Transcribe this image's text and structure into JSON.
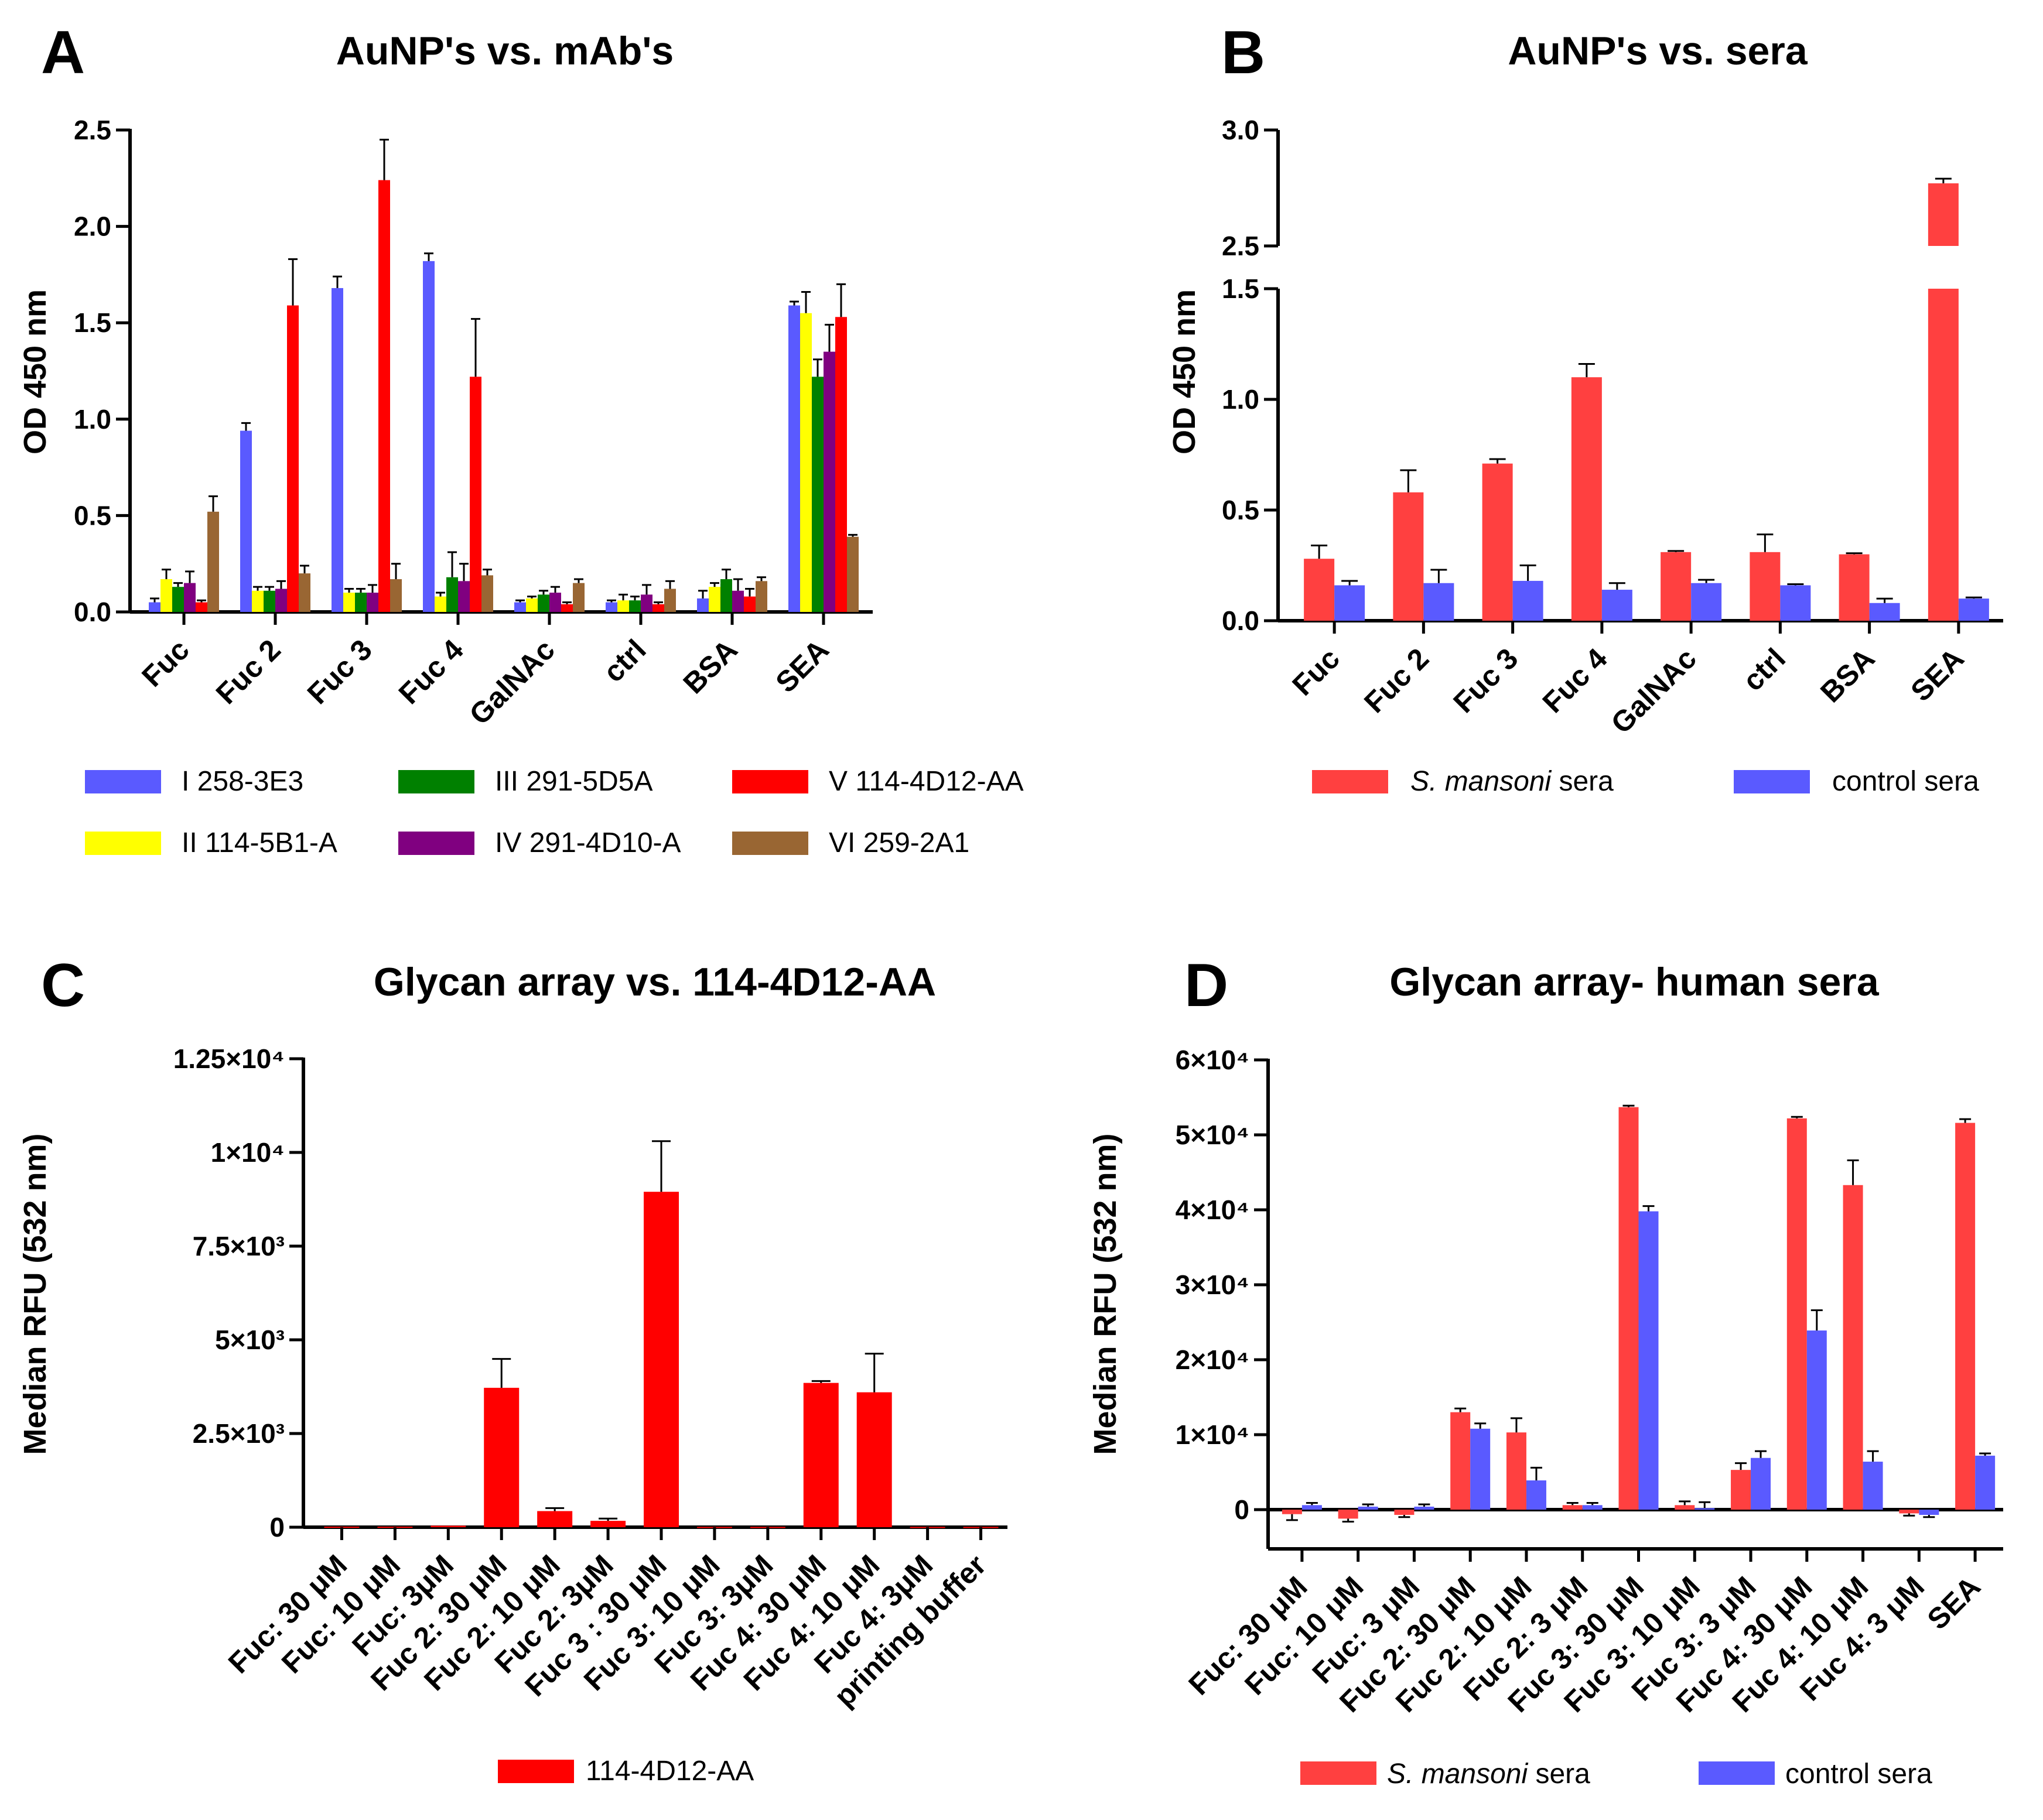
{
  "colors": {
    "mab_I": "#5a5aff",
    "mab_II": "#ffff00",
    "mab_III": "#008000",
    "mab_IV": "#800080",
    "mab_V": "#ff0000",
    "mab_VI": "#996633",
    "sm_sera": "#ff4040",
    "ctrl_sera": "#5a5aff",
    "bar_c": "#ff0000"
  },
  "chart_data": [
    {
      "panel": "A",
      "type": "bar",
      "title": "AuNP's vs. mAb's",
      "ylabel": "OD 450 nm",
      "xlabel": "",
      "ylim": [
        0,
        2.5
      ],
      "yticks": [
        "0.0",
        "0.5",
        "1.0",
        "1.5",
        "2.0",
        "2.5"
      ],
      "categories": [
        "Fuc",
        "Fuc 2",
        "Fuc 3",
        "Fuc 4",
        "GalNAc",
        "ctrl",
        "BSA",
        "SEA"
      ],
      "series": [
        {
          "name": "I 258-3E3",
          "values": [
            0.05,
            0.94,
            1.68,
            1.82,
            0.05,
            0.05,
            0.07,
            1.59
          ],
          "errors": [
            0.02,
            0.04,
            0.06,
            0.04,
            0.01,
            0.01,
            0.04,
            0.02
          ]
        },
        {
          "name": "II 114-5B1-A",
          "values": [
            0.17,
            0.11,
            0.1,
            0.08,
            0.07,
            0.06,
            0.13,
            1.55
          ],
          "errors": [
            0.05,
            0.02,
            0.02,
            0.02,
            0.01,
            0.03,
            0.02,
            0.11
          ]
        },
        {
          "name": "III 291-5D5A",
          "values": [
            0.13,
            0.11,
            0.1,
            0.18,
            0.09,
            0.06,
            0.17,
            1.22
          ],
          "errors": [
            0.02,
            0.02,
            0.02,
            0.13,
            0.02,
            0.02,
            0.05,
            0.09
          ]
        },
        {
          "name": "IV 291-4D10-A",
          "values": [
            0.15,
            0.12,
            0.1,
            0.16,
            0.1,
            0.09,
            0.11,
            1.35
          ],
          "errors": [
            0.06,
            0.04,
            0.04,
            0.09,
            0.03,
            0.05,
            0.06,
            0.14
          ]
        },
        {
          "name": "V 114-4D12-AA",
          "values": [
            0.05,
            1.59,
            2.24,
            1.22,
            0.04,
            0.04,
            0.08,
            1.53
          ],
          "errors": [
            0.01,
            0.24,
            0.21,
            0.3,
            0.01,
            0.01,
            0.04,
            0.17
          ]
        },
        {
          "name": "VI 259-2A1",
          "values": [
            0.52,
            0.2,
            0.17,
            0.19,
            0.15,
            0.12,
            0.16,
            0.39
          ],
          "errors": [
            0.08,
            0.04,
            0.08,
            0.03,
            0.02,
            0.04,
            0.02,
            0.01
          ]
        }
      ],
      "legend": "bottom"
    },
    {
      "panel": "B",
      "type": "bar",
      "title": "AuNP's vs. sera",
      "ylabel": "OD 450 nm",
      "xlabel": "",
      "ylim": [
        0,
        3.0
      ],
      "axis_break": [
        1.5,
        2.5
      ],
      "yticks": [
        "0.0",
        "0.5",
        "1.0",
        "1.5",
        "2.5",
        "3.0"
      ],
      "categories": [
        "Fuc",
        "Fuc 2",
        "Fuc 3",
        "Fuc 4",
        "GalNAc",
        "ctrl",
        "BSA",
        "SEA"
      ],
      "series": [
        {
          "name": "S. mansoni sera",
          "values": [
            0.28,
            0.58,
            0.71,
            1.1,
            0.31,
            0.31,
            0.3,
            2.77
          ],
          "errors": [
            0.06,
            0.1,
            0.02,
            0.06,
            0.005,
            0.08,
            0.005,
            0.02
          ]
        },
        {
          "name": "control sera",
          "values": [
            0.16,
            0.17,
            0.18,
            0.14,
            0.17,
            0.16,
            0.08,
            0.1
          ],
          "errors": [
            0.02,
            0.06,
            0.07,
            0.03,
            0.015,
            0.005,
            0.02,
            0.005
          ]
        }
      ],
      "legend_items": [
        {
          "prefix": "",
          "italic": "S. mansoni",
          "suffix": " sera"
        },
        {
          "prefix": "control sera",
          "italic": "",
          "suffix": ""
        }
      ],
      "legend": "bottom"
    },
    {
      "panel": "C",
      "type": "bar",
      "title": "Glycan array vs. 114-4D12-AA",
      "ylabel": "Median RFU (532 nm)",
      "xlabel": "",
      "ylim": [
        0,
        12500
      ],
      "yticks": [
        "0",
        "2.5×10³",
        "5×10³",
        "7.5×10³",
        "1×10⁴",
        "1.25×10⁴"
      ],
      "categories": [
        "Fuc: 30 μM",
        "Fuc: 10 μM",
        "Fuc: 3μM",
        "Fuc 2: 30 μM",
        "Fuc 2: 10 μM",
        "Fuc 2: 3μM",
        "Fuc 3 : 30 μM",
        "Fuc 3: 10 μM",
        "Fuc 3: 3μM",
        "Fuc 4: 30 μM",
        "Fuc 4: 10 μM",
        "Fuc 4: 3μM",
        "printing buffer"
      ],
      "series": [
        {
          "name": "114-4D12-AA",
          "values": [
            15,
            15,
            40,
            3720,
            430,
            170,
            8950,
            10,
            10,
            3850,
            3600,
            10,
            10
          ],
          "errors": [
            0,
            0,
            0,
            770,
            80,
            60,
            1350,
            0,
            0,
            50,
            1030,
            0,
            0
          ]
        }
      ],
      "legend": "bottom"
    },
    {
      "panel": "D",
      "type": "bar",
      "title": "Glycan array- human sera",
      "ylabel": "Median RFU (532 nm)",
      "xlabel": "",
      "ylim": [
        -5000,
        60000
      ],
      "yticks": [
        "0",
        "1×10⁴",
        "2×10⁴",
        "3×10⁴",
        "4×10⁴",
        "5×10⁴",
        "6×10⁴"
      ],
      "categories": [
        "Fuc: 30 μM",
        "Fuc: 10 μM",
        "Fuc: 3 μM",
        "Fuc 2: 30 μM",
        "Fuc 2: 10 μM",
        "Fuc 2: 3 μM",
        "Fuc 3: 30 μM",
        "Fuc 3: 10 μM",
        "Fuc 3: 3 μM",
        "Fuc 4: 30 μM",
        "Fuc 4: 10 μM",
        "Fuc 4: 3 μM",
        "SEA"
      ],
      "series": [
        {
          "name": "S. mansoni sera",
          "values": [
            -600,
            -1200,
            -700,
            13000,
            10300,
            600,
            53700,
            600,
            5300,
            52200,
            43300,
            -500,
            51600
          ],
          "errors": [
            800,
            400,
            300,
            500,
            1900,
            300,
            200,
            500,
            900,
            200,
            3300,
            300,
            500
          ]
        },
        {
          "name": "control sera",
          "values": [
            600,
            400,
            400,
            10800,
            3900,
            600,
            39800,
            200,
            6900,
            23900,
            6400,
            -700,
            7200
          ],
          "errors": [
            300,
            300,
            300,
            700,
            1700,
            300,
            700,
            800,
            900,
            2700,
            1400,
            300,
            300
          ]
        }
      ],
      "legend_items": [
        {
          "prefix": "",
          "italic": "S. mansoni",
          "suffix": " sera"
        },
        {
          "prefix": "control sera",
          "italic": "",
          "suffix": ""
        }
      ],
      "legend": "bottom"
    }
  ]
}
